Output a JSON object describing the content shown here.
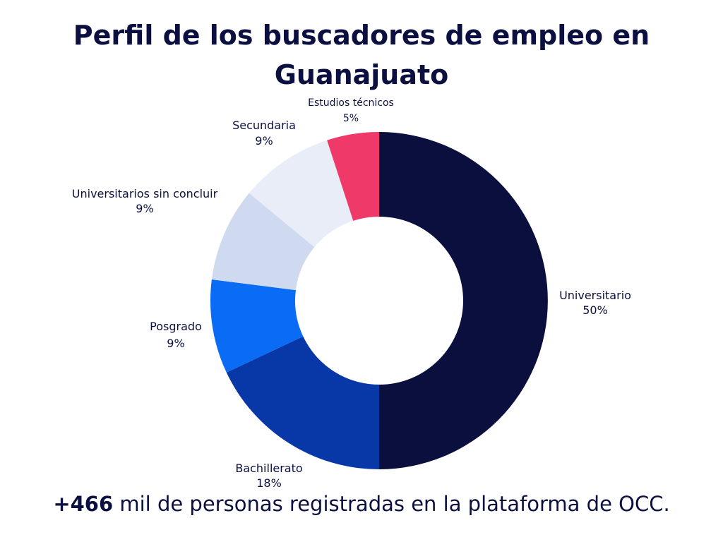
{
  "title_lines": [
    "Perfil de los buscadores de empleo en",
    "Guanajuato"
  ],
  "footer": {
    "highlight": "+466",
    "text": " mil de personas registradas en la plataforma de OCC."
  },
  "chart_data": {
    "type": "pie",
    "style": "donut",
    "title": "Perfil de los buscadores de empleo en Guanajuato",
    "slices": [
      {
        "label": "Universitario",
        "value": 50,
        "value_label": "50%",
        "color": "#0a0f3d"
      },
      {
        "label": "Bachillerato",
        "value": 18,
        "value_label": "18%",
        "color": "#0837a8"
      },
      {
        "label": "Posgrado",
        "value": 9,
        "value_label": "9%",
        "color": "#0a6cf5"
      },
      {
        "label": "Universitarios sin concluir",
        "value": 9,
        "value_label": "9%",
        "color": "#cfdaf0"
      },
      {
        "label": "Secundaria",
        "value": 9,
        "value_label": "9%",
        "color": "#e8edf8"
      },
      {
        "label": "Estudios técnicos",
        "value": 5,
        "value_label": "5%",
        "color": "#ef3a69"
      }
    ],
    "start": "top",
    "direction": "clockwise"
  }
}
